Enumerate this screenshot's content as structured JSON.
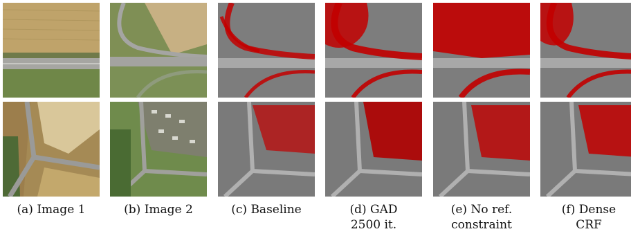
{
  "figure": {
    "panels": [
      {
        "id": "a",
        "caption_line1": "(a) Image 1",
        "caption_line2": ""
      },
      {
        "id": "b",
        "caption_line1": "(b) Image 2",
        "caption_line2": ""
      },
      {
        "id": "c",
        "caption_line1": "(c) Baseline",
        "caption_line2": ""
      },
      {
        "id": "d",
        "caption_line1": "(d) GAD",
        "caption_line2": "2500 it."
      },
      {
        "id": "e",
        "caption_line1": "(e) No ref.",
        "caption_line2": "constraint"
      },
      {
        "id": "f",
        "caption_line1": "(f) Dense",
        "caption_line2": "CRF"
      }
    ],
    "colors": {
      "overlay_red": "#c20000",
      "field_tan": "#b8a46a",
      "field_green": "#7c8f55",
      "road_gray": "#9a9a98",
      "gray_base": "#8a8a8a"
    }
  }
}
